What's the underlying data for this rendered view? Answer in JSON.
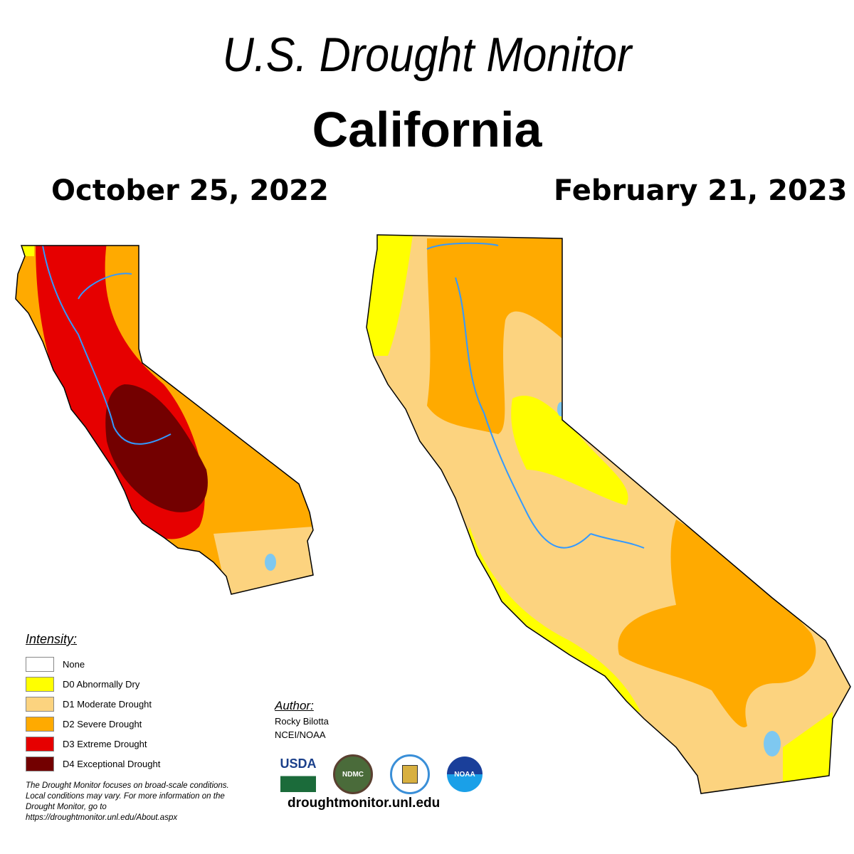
{
  "header": {
    "title": "U.S. Drought Monitor",
    "state": "California"
  },
  "maps": [
    {
      "date": "October 25, 2022"
    },
    {
      "date": "February 21, 2023"
    }
  ],
  "legend": {
    "title": "Intensity:",
    "items": [
      {
        "label": "None",
        "color": "#ffffff"
      },
      {
        "label": "D0 Abnormally Dry",
        "color": "#ffff00"
      },
      {
        "label": "D1 Moderate Drought",
        "color": "#fcd37f"
      },
      {
        "label": "D2 Severe Drought",
        "color": "#ffaa00"
      },
      {
        "label": "D3 Extreme Drought",
        "color": "#e60000"
      },
      {
        "label": "D4 Exceptional Drought",
        "color": "#730000"
      }
    ]
  },
  "note": "The Drought Monitor focuses on broad-scale conditions. Local conditions may vary. For more information on the Drought Monitor, go to https://droughtmonitor.unl.edu/About.aspx",
  "author": {
    "heading": "Author:",
    "name": "Rocky Bilotta",
    "org": "NCEI/NOAA"
  },
  "logos": [
    {
      "name": "USDA",
      "icon": "usda-logo"
    },
    {
      "name": "NDMC",
      "icon": "ndmc-logo"
    },
    {
      "name": "Department of Commerce",
      "icon": "commerce-seal"
    },
    {
      "name": "NOAA",
      "icon": "noaa-logo"
    }
  ],
  "website": "droughtmonitor.unl.edu",
  "colors": {
    "water": "#7ec8f0",
    "river": "#3399ff"
  }
}
